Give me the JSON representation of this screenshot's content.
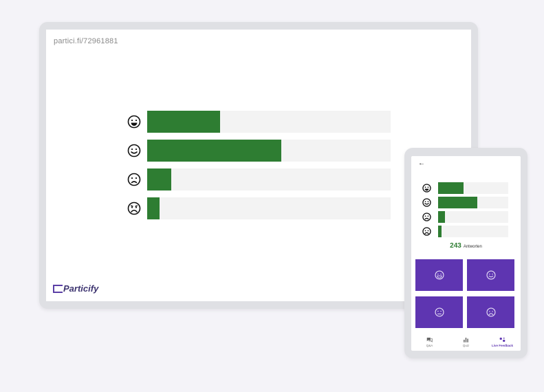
{
  "presentation": {
    "join_url": "partici.fi/72961881",
    "brand": "Particify",
    "rows": [
      {
        "icon": "laughing-face-icon",
        "mood": "very-happy",
        "fraction": 0.3
      },
      {
        "icon": "smiling-face-icon",
        "mood": "happy",
        "fraction": 0.55
      },
      {
        "icon": "frowning-face-icon",
        "mood": "unhappy",
        "fraction": 0.1
      },
      {
        "icon": "sad-face-icon",
        "mood": "very-unhappy",
        "fraction": 0.05
      }
    ]
  },
  "phone": {
    "back_icon": "arrow-left-icon",
    "rows": [
      {
        "icon": "laughing-face-icon",
        "fraction": 0.36
      },
      {
        "icon": "smiling-face-icon",
        "fraction": 0.56
      },
      {
        "icon": "frowning-face-icon",
        "fraction": 0.1
      },
      {
        "icon": "sad-face-icon",
        "fraction": 0.05
      }
    ],
    "answer_count": "243",
    "answer_label": "Antworten",
    "vote_buttons": [
      {
        "icon": "laughing-face-icon"
      },
      {
        "icon": "smiling-face-icon"
      },
      {
        "icon": "frowning-face-icon"
      },
      {
        "icon": "sad-face-icon"
      }
    ],
    "nav": [
      {
        "icon": "chat-icon",
        "label": "Q&A",
        "active": false
      },
      {
        "icon": "bar-chart-icon",
        "label": "Quiz",
        "active": false
      },
      {
        "icon": "live-feedback-icon",
        "label": "Live Feedback",
        "active": true
      }
    ]
  },
  "colors": {
    "bar_fill": "#2e7d32",
    "bar_track": "#f3f3f3",
    "accent": "#5e35b1",
    "page_bg": "#f4f3f8"
  }
}
